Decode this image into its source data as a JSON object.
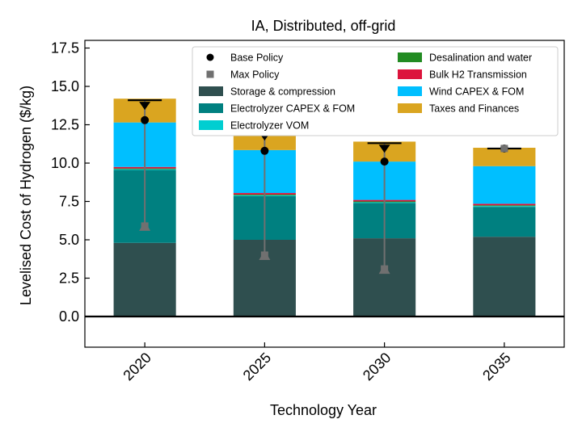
{
  "chart_data": {
    "type": "bar",
    "stacked": true,
    "title": "IA, Distributed, off-grid",
    "xlabel": "Technology Year",
    "ylabel": "Levelised Cost of Hydrogen ($/kg)",
    "ylim": [
      -2.0,
      18.0
    ],
    "yticks": [
      0.0,
      2.5,
      5.0,
      7.5,
      10.0,
      12.5,
      15.0,
      17.5
    ],
    "ytick_labels": [
      "0.0",
      "2.5",
      "5.0",
      "7.5",
      "10.0",
      "12.5",
      "15.0",
      "17.5"
    ],
    "categories": [
      "2020",
      "2025",
      "2030",
      "2035"
    ],
    "series": [
      {
        "name": "Storage & compression",
        "color": "#2f4f4f",
        "values": [
          4.8,
          5.0,
          5.1,
          5.2
        ]
      },
      {
        "name": "Electrolyzer CAPEX & FOM",
        "color": "#008080",
        "values": [
          4.75,
          2.85,
          2.3,
          1.95
        ]
      },
      {
        "name": "Electrolyzer VOM",
        "color": "#00ced1",
        "values": [
          0.05,
          0.05,
          0.05,
          0.05
        ]
      },
      {
        "name": "Desalination and water",
        "color": "#228b22",
        "values": [
          0.05,
          0.05,
          0.05,
          0.05
        ]
      },
      {
        "name": "Bulk H2 Transmission",
        "color": "#dc143c",
        "values": [
          0.1,
          0.1,
          0.1,
          0.1
        ]
      },
      {
        "name": "Wind CAPEX & FOM",
        "color": "#00bfff",
        "values": [
          2.9,
          2.8,
          2.5,
          2.45
        ]
      },
      {
        "name": "Taxes and Finances",
        "color": "#daa520",
        "values": [
          1.55,
          1.35,
          1.3,
          1.2
        ]
      }
    ],
    "totals": [
      14.1,
      12.1,
      11.3,
      10.95
    ],
    "markers": [
      {
        "name": "Base Policy",
        "shape": "circle",
        "color": "#000000",
        "values": [
          12.8,
          10.8,
          10.1,
          10.95
        ]
      },
      {
        "name": "Max Policy",
        "shape": "square",
        "color": "#707070",
        "values": [
          5.9,
          4.0,
          3.1,
          10.95
        ]
      }
    ],
    "legend": {
      "location": "top-right",
      "columns": 2,
      "entries": [
        {
          "label": "Base Policy",
          "kind": "marker-circle",
          "color": "#000000"
        },
        {
          "label": "Desalination and water",
          "kind": "patch",
          "color": "#228b22"
        },
        {
          "label": "Max Policy",
          "kind": "marker-square",
          "color": "#707070"
        },
        {
          "label": "Bulk H2 Transmission",
          "kind": "patch",
          "color": "#dc143c"
        },
        {
          "label": "Storage & compression",
          "kind": "patch",
          "color": "#2f4f4f"
        },
        {
          "label": "Wind CAPEX & FOM",
          "kind": "patch",
          "color": "#00bfff"
        },
        {
          "label": "Electrolyzer CAPEX & FOM",
          "kind": "patch",
          "color": "#008080"
        },
        {
          "label": "Taxes and Finances",
          "kind": "patch",
          "color": "#daa520"
        },
        {
          "label": "Electrolyzer VOM",
          "kind": "patch",
          "color": "#00ced1"
        }
      ]
    }
  }
}
